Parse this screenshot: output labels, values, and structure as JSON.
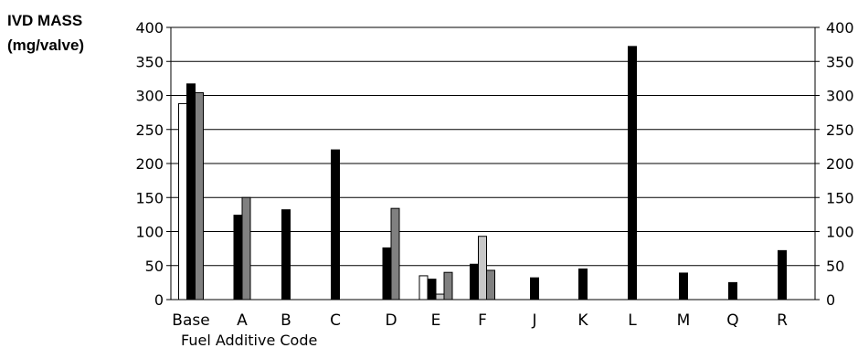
{
  "chart_data": {
    "type": "bar",
    "title": "",
    "ylabel_lines": [
      "IVD MASS",
      "(mg/valve)"
    ],
    "xlabel": "Fuel Additive Code",
    "ylim": [
      0,
      400
    ],
    "yticks": [
      0,
      50,
      100,
      150,
      200,
      250,
      300,
      350,
      400
    ],
    "grid": "horizontal",
    "right_axis": true,
    "legend": "none",
    "categories": [
      "Base",
      "A",
      "B",
      "C",
      "D",
      "E",
      "F",
      "J",
      "K",
      "L",
      "M",
      "Q",
      "R"
    ],
    "bars": [
      {
        "category": "Base",
        "value": 288,
        "color": "#ffffff"
      },
      {
        "category": "Base",
        "value": 317,
        "color": "#000000"
      },
      {
        "category": "Base",
        "value": 304,
        "color": "#808080"
      },
      {
        "category": "A",
        "value": 124,
        "color": "#000000"
      },
      {
        "category": "A",
        "value": 150,
        "color": "#808080"
      },
      {
        "category": "B",
        "value": 132,
        "color": "#000000"
      },
      {
        "category": "C",
        "value": 220,
        "color": "#000000"
      },
      {
        "category": "D",
        "value": 76,
        "color": "#000000"
      },
      {
        "category": "D",
        "value": 134,
        "color": "#808080"
      },
      {
        "category": "E",
        "value": 35,
        "color": "#ffffff"
      },
      {
        "category": "E",
        "value": 30,
        "color": "#000000"
      },
      {
        "category": "E",
        "value": 8,
        "color": "#c8c8c8"
      },
      {
        "category": "E",
        "value": 40,
        "color": "#808080"
      },
      {
        "category": "F",
        "value": 52,
        "color": "#000000"
      },
      {
        "category": "F",
        "value": 93,
        "color": "#c8c8c8"
      },
      {
        "category": "F",
        "value": 43,
        "color": "#808080"
      },
      {
        "category": "J",
        "value": 32,
        "color": "#000000"
      },
      {
        "category": "K",
        "value": 45,
        "color": "#000000"
      },
      {
        "category": "L",
        "value": 372,
        "color": "#000000"
      },
      {
        "category": "M",
        "value": 39,
        "color": "#000000"
      },
      {
        "category": "Q",
        "value": 25,
        "color": "#000000"
      },
      {
        "category": "R",
        "value": 72,
        "color": "#000000"
      }
    ]
  }
}
